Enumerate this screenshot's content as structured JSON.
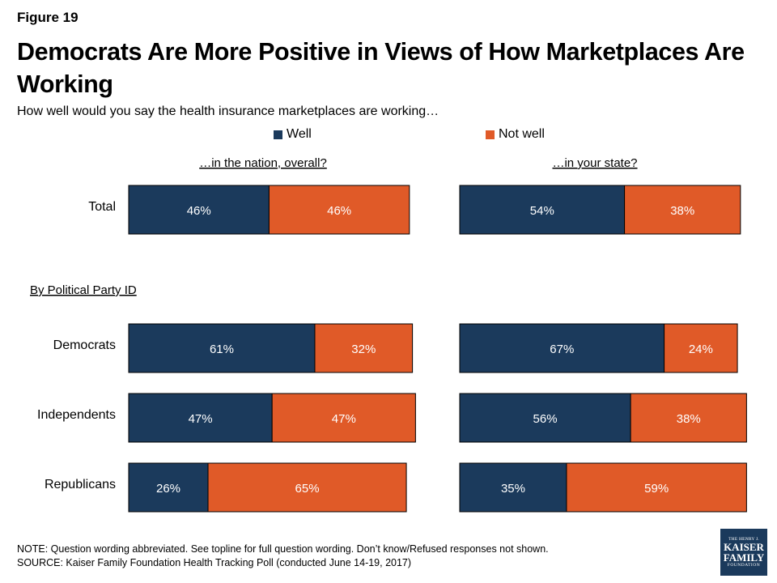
{
  "figure_label": "Figure 19",
  "title": "Democrats Are More Positive in Views of How Marketplaces Are Working",
  "subtitle": "How well would you say the health insurance marketplaces are working…",
  "legend": [
    {
      "label": "Well",
      "color": "#1b3a5c"
    },
    {
      "label": "Not well",
      "color": "#e05a28"
    }
  ],
  "group_label": "By Political Party ID",
  "note": "NOTE: Question wording abbreviated. See topline for full question wording. Don’t know/Refused responses not shown.",
  "source": "SOURCE: Kaiser Family Foundation Health Tracking Poll (conducted June 14-19, 2017)",
  "logo": {
    "line1": "THE HENRY J.",
    "line2": "KAISER",
    "line3": "FAMILY",
    "line4": "FOUNDATION"
  },
  "chart_data": [
    {
      "type": "bar",
      "orientation": "horizontal",
      "stacked": true,
      "title": "…in the nation, overall?",
      "categories": [
        "Total",
        "Democrats",
        "Independents",
        "Republicans"
      ],
      "series": [
        {
          "name": "Well",
          "color": "#1b3a5c",
          "values": [
            46,
            61,
            47,
            26
          ]
        },
        {
          "name": "Not well",
          "color": "#e05a28",
          "values": [
            46,
            32,
            47,
            65
          ]
        }
      ],
      "value_suffix": "%"
    },
    {
      "type": "bar",
      "orientation": "horizontal",
      "stacked": true,
      "title": "…in your state?",
      "categories": [
        "Total",
        "Democrats",
        "Independents",
        "Republicans"
      ],
      "series": [
        {
          "name": "Well",
          "color": "#1b3a5c",
          "values": [
            54,
            67,
            56,
            35
          ]
        },
        {
          "name": "Not well",
          "color": "#e05a28",
          "values": [
            38,
            24,
            38,
            59
          ]
        }
      ],
      "value_suffix": "%"
    }
  ]
}
